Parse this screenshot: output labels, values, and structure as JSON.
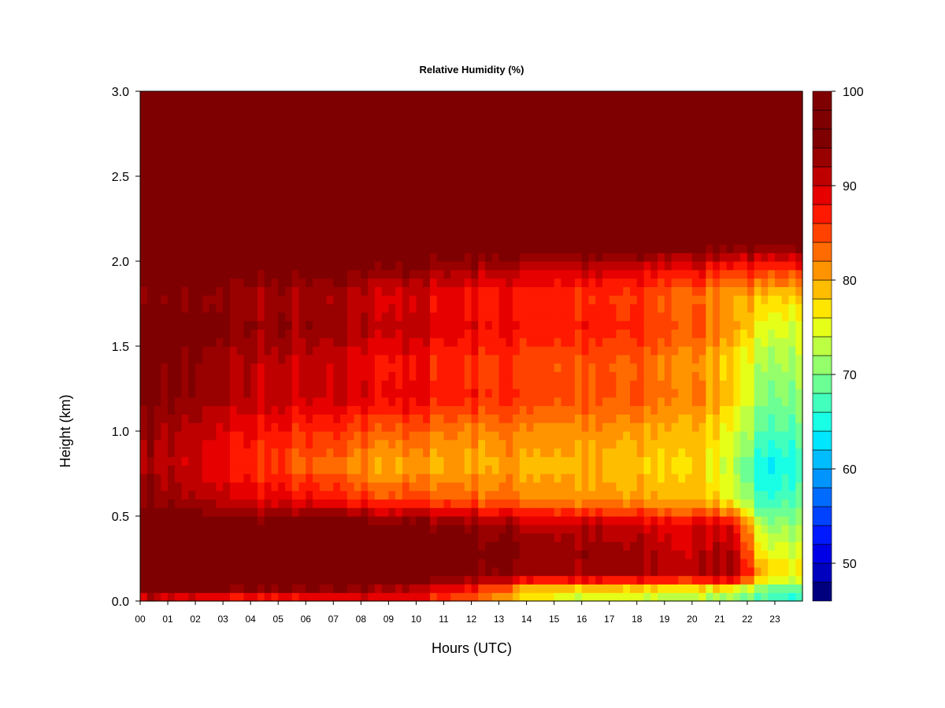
{
  "chart_data": {
    "type": "heatmap",
    "title": "Relative Humidity (%)",
    "xlabel": "Hours (UTC)",
    "ylabel": "Height (km)",
    "x_ticks": [
      "00",
      "01",
      "02",
      "03",
      "04",
      "05",
      "06",
      "07",
      "08",
      "09",
      "10",
      "11",
      "12",
      "13",
      "14",
      "15",
      "16",
      "17",
      "18",
      "19",
      "20",
      "21",
      "22",
      "23"
    ],
    "xlim": [
      0,
      24
    ],
    "y_ticks": [
      "0.0",
      "0.5",
      "1.0",
      "1.5",
      "2.0",
      "2.5",
      "3.0"
    ],
    "ylim": [
      0,
      3.0
    ],
    "colorbar": {
      "min": 46,
      "max": 100,
      "step": 2,
      "tick_labels": [
        "50",
        "60",
        "70",
        "80",
        "90",
        "100"
      ],
      "colors": [
        "#00007f",
        "#0000bf",
        "#0000e6",
        "#0019ff",
        "#0042ff",
        "#006bff",
        "#0094ff",
        "#00bdff",
        "#00e6ff",
        "#19ffe6",
        "#42ffbd",
        "#6bff94",
        "#94ff6b",
        "#bdff42",
        "#e6ff19",
        "#ffe600",
        "#ffbd00",
        "#ff9400",
        "#ff6b00",
        "#ff4200",
        "#ff1900",
        "#e60000",
        "#bf0000",
        "#990000",
        "#7f0000",
        "#7f0000",
        "#7f0000"
      ]
    },
    "profile": {
      "heights_km": [
        0.0,
        0.05,
        0.15,
        0.3,
        0.45,
        0.6,
        0.8,
        1.0,
        1.2,
        1.4,
        1.6,
        1.8,
        1.95,
        2.15,
        2.3,
        3.0
      ],
      "hour_keys": [
        0,
        3,
        6,
        9,
        12,
        14,
        16,
        18,
        20,
        21.5,
        22.5,
        24
      ],
      "rh_percent": [
        [
          88,
          84,
          84,
          88,
          84,
          80,
          75,
          75,
          74,
          74,
          68,
          66
        ],
        [
          95,
          92,
          92,
          91,
          86,
          76,
          74,
          73,
          72,
          72,
          68,
          66
        ],
        [
          99,
          99,
          99,
          98,
          95,
          93,
          92,
          92,
          91,
          94,
          80,
          76
        ],
        [
          99,
          98,
          99,
          98,
          96,
          94,
          93,
          92,
          90,
          93,
          76,
          73
        ],
        [
          98,
          96,
          97,
          96,
          94,
          92,
          91,
          90,
          89,
          90,
          72,
          71
        ],
        [
          95,
          90,
          88,
          85,
          84,
          82,
          81,
          80,
          79,
          76,
          66,
          68
        ],
        [
          93,
          88,
          83,
          80,
          80,
          80,
          79,
          78,
          78,
          74,
          64,
          66
        ],
        [
          94,
          89,
          86,
          84,
          82,
          82,
          81,
          80,
          79,
          76,
          68,
          68
        ],
        [
          96,
          92,
          90,
          89,
          87,
          86,
          84,
          84,
          82,
          79,
          70,
          70
        ],
        [
          96,
          92,
          90,
          88,
          86,
          85,
          84,
          83,
          81,
          78,
          72,
          72
        ],
        [
          97,
          94,
          93,
          91,
          89,
          88,
          87,
          86,
          84,
          82,
          75,
          74
        ],
        [
          95,
          93,
          92,
          90,
          88,
          87,
          86,
          85,
          83,
          81,
          79,
          78
        ],
        [
          98,
          96,
          95,
          94,
          92,
          91,
          90,
          89,
          88,
          87,
          86,
          86
        ],
        [
          100,
          100,
          99,
          99,
          99,
          99,
          99,
          99,
          99,
          99,
          98,
          98
        ],
        [
          100,
          100,
          100,
          100,
          100,
          100,
          100,
          100,
          100,
          100,
          100,
          100
        ],
        [
          100,
          100,
          100,
          100,
          100,
          100,
          100,
          100,
          100,
          100,
          100,
          100
        ]
      ]
    }
  }
}
